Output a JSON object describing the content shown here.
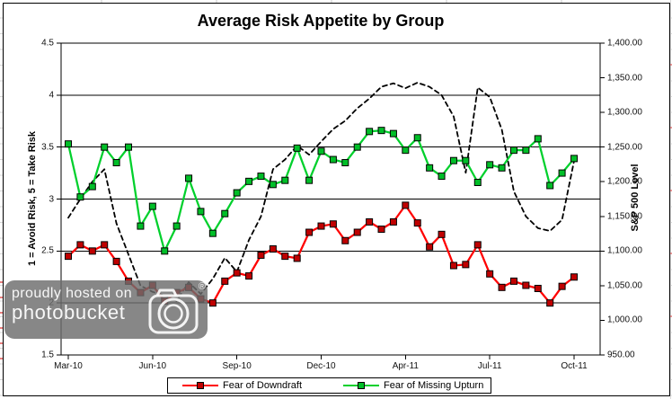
{
  "chart_data": {
    "type": "line",
    "title": "Average Risk Appetite by Group",
    "n_points": 43,
    "grid": "horizontal-major",
    "legend_position": "bottom",
    "x_tick_labels": [
      {
        "index": 0,
        "label": "Mar-10"
      },
      {
        "index": 7,
        "label": "Jun-10"
      },
      {
        "index": 14,
        "label": "Sep-10"
      },
      {
        "index": 21,
        "label": "Dec-10"
      },
      {
        "index": 28,
        "label": "Apr-11"
      },
      {
        "index": 35,
        "label": "Jul-11"
      },
      {
        "index": 42,
        "label": "Oct-11"
      }
    ],
    "left_axis": {
      "title": "1 = Avoid Risk, 5 = Take Risk",
      "min": 1.5,
      "max": 4.5,
      "step": 0.5,
      "ticks": [
        "4.5",
        "4",
        "3.5",
        "3",
        "2.5",
        "2",
        "1.5"
      ]
    },
    "right_axis": {
      "title": "S&P 500 Level",
      "min": 950,
      "max": 1400,
      "step": 50,
      "ticks": [
        "1,400.00",
        "1,350.00",
        "1,300.00",
        "1,250.00",
        "1,200.00",
        "1,150.00",
        "1,100.00",
        "1,050.00",
        "1,000.00",
        "950.00"
      ]
    },
    "series": [
      {
        "name": "Fear of Downdraft",
        "axis": "left",
        "style": "solid",
        "marker": "square",
        "line_color": "#FF0000",
        "marker_color": "#C00000",
        "marker_edge": "#000000",
        "in_legend": true,
        "values": [
          2.45,
          2.56,
          2.5,
          2.56,
          2.4,
          2.21,
          2.1,
          2.17,
          2.02,
          2.1,
          2.15,
          2.04,
          2.0,
          2.21,
          2.29,
          2.26,
          2.46,
          2.52,
          2.45,
          2.43,
          2.68,
          2.74,
          2.76,
          2.6,
          2.68,
          2.78,
          2.71,
          2.78,
          2.94,
          2.77,
          2.54,
          2.66,
          2.36,
          2.37,
          2.56,
          2.28,
          2.15,
          2.21,
          2.17,
          2.14,
          2.0,
          2.16,
          2.25
        ]
      },
      {
        "name": "Fear of Missing Upturn",
        "axis": "left",
        "style": "solid",
        "marker": "square",
        "line_color": "#00D02C",
        "marker_color": "#00BE28",
        "marker_edge": "#000000",
        "in_legend": true,
        "values": [
          3.53,
          3.02,
          3.12,
          3.5,
          3.35,
          3.5,
          2.74,
          2.93,
          2.5,
          2.74,
          3.2,
          2.88,
          2.67,
          2.86,
          3.06,
          3.17,
          3.22,
          3.14,
          3.18,
          3.49,
          3.18,
          3.46,
          3.38,
          3.35,
          3.5,
          3.65,
          3.66,
          3.63,
          3.47,
          3.59,
          3.3,
          3.22,
          3.37,
          3.37,
          3.16,
          3.33,
          3.3,
          3.47,
          3.47,
          3.58,
          3.13,
          3.25,
          3.39
        ]
      },
      {
        "name": "S&P 500",
        "axis": "right",
        "style": "dashed",
        "marker": "none",
        "line_color": "#000000",
        "in_legend": false,
        "values": [
          1148,
          1175,
          1200,
          1218,
          1140,
          1095,
          1050,
          1041,
          1036,
          1028,
          1055,
          1038,
          1060,
          1090,
          1070,
          1116,
          1150,
          1218,
          1232,
          1252,
          1239,
          1258,
          1276,
          1288,
          1306,
          1320,
          1337,
          1342,
          1335,
          1343,
          1337,
          1325,
          1294,
          1213,
          1336,
          1322,
          1275,
          1186,
          1150,
          1133,
          1129,
          1145,
          1230
        ]
      }
    ],
    "legend": {
      "items": [
        "Fear of Downdraft",
        "Fear of Missing Upturn"
      ]
    }
  },
  "watermark": {
    "line1": "proudly hosted on",
    "line2": "photobucket",
    "registered_mark": "®",
    "icon": "camera-icon"
  }
}
